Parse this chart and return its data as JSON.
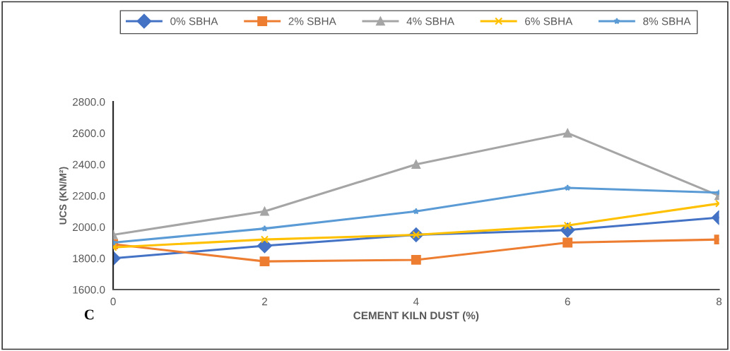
{
  "chart_data": {
    "type": "line",
    "xlabel": "CEMENT KILN DUST (%)",
    "ylabel": "UCS (KN/M²)",
    "annotations": [
      "C"
    ],
    "x": [
      0,
      2,
      4,
      6,
      8
    ],
    "series": [
      {
        "name": "0% SBHA",
        "color": "#4472c4",
        "marker": "diamond",
        "values": [
          1800,
          1880,
          1950,
          1980,
          2060
        ]
      },
      {
        "name": "2% SBHA",
        "color": "#ed7d31",
        "marker": "square",
        "values": [
          1890,
          1780,
          1790,
          1900,
          1920
        ]
      },
      {
        "name": "4% SBHA",
        "color": "#a5a5a5",
        "marker": "triangle",
        "values": [
          1950,
          2100,
          2400,
          2600,
          2200
        ]
      },
      {
        "name": "6% SBHA",
        "color": "#ffc000",
        "marker": "cross",
        "values": [
          1870,
          1920,
          1950,
          2010,
          2150
        ]
      },
      {
        "name": "8% SBHA",
        "color": "#5b9bd5",
        "marker": "star",
        "values": [
          1900,
          1990,
          2100,
          2250,
          2220
        ]
      }
    ],
    "xlim": [
      0,
      8
    ],
    "xticks": [
      0,
      2,
      4,
      6,
      8
    ],
    "ylim": [
      1600,
      2800
    ],
    "yticks": [
      {
        "value": 1600,
        "label": "1600.0"
      },
      {
        "value": 1800,
        "label": "1800.0"
      },
      {
        "value": 2000,
        "label": "2000.0"
      },
      {
        "value": 2200,
        "label": "2200.0"
      },
      {
        "value": 2400,
        "label": "2400.0"
      },
      {
        "value": 2600,
        "label": "2600.0"
      },
      {
        "value": 2800,
        "label": "2800.0"
      }
    ],
    "grid": false,
    "legend": "top",
    "line_style": "solid"
  }
}
